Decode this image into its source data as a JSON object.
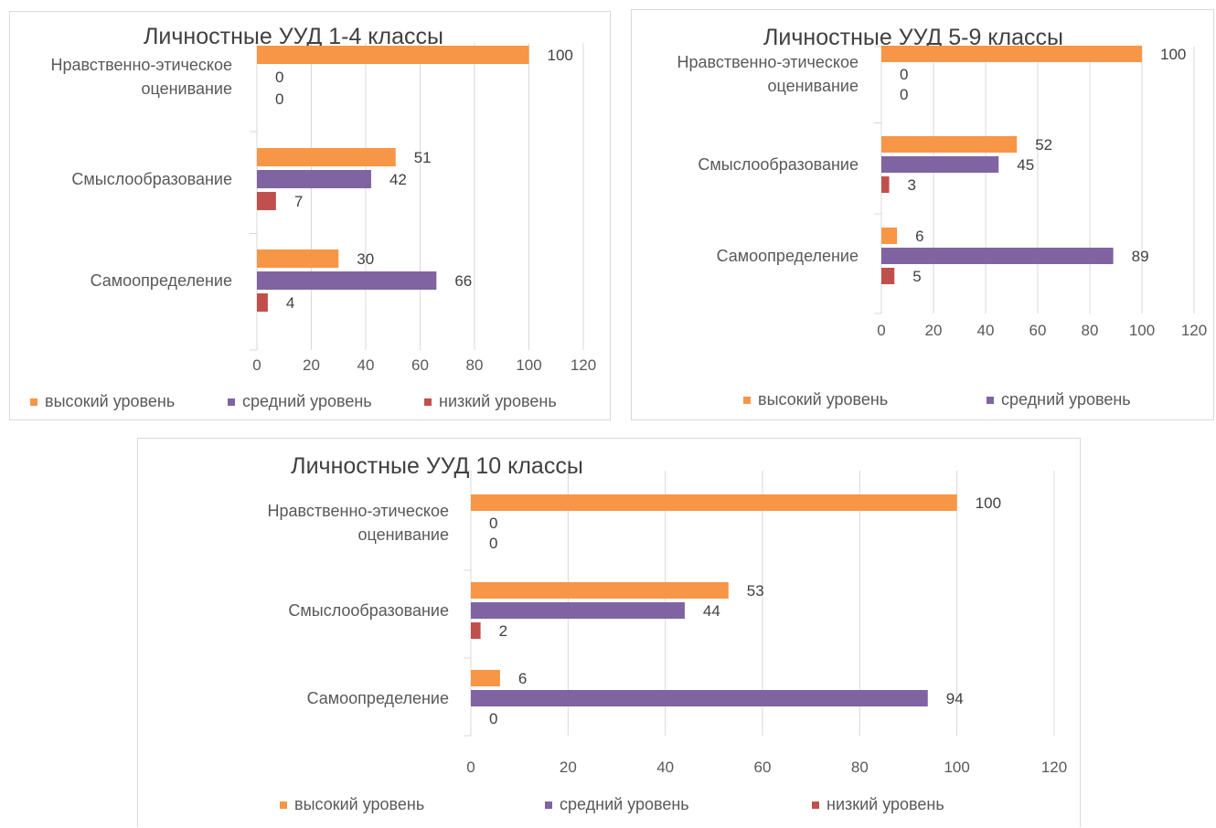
{
  "colors": {
    "high": "#f79646",
    "mid": "#8064a2",
    "low": "#c0504d",
    "grid": "#d9d9d9"
  },
  "chart_data": [
    {
      "type": "bar",
      "title": "Личностные УУД 1-4 классы",
      "categories": [
        "Нравственно-этическое оценивание",
        "Смыслообразование",
        "Самоопределение"
      ],
      "category_lines": [
        [
          "Нравственно-этическое",
          "оценивание"
        ],
        [
          "Смыслообразование"
        ],
        [
          "Самоопределение"
        ]
      ],
      "series": [
        {
          "name": "высокий уровень",
          "values": [
            100,
            51,
            30
          ]
        },
        {
          "name": "средний уровень",
          "values": [
            0,
            42,
            66
          ]
        },
        {
          "name": "низкий уровень",
          "values": [
            0,
            7,
            4
          ]
        }
      ],
      "xlim": [
        0,
        120
      ],
      "xticks": [
        "0",
        "20",
        "40",
        "60",
        "80",
        "100",
        "120"
      ],
      "grid": true,
      "legend": "bottom"
    },
    {
      "type": "bar",
      "title": "Личностные УУД 5-9 классы",
      "categories": [
        "Нравственно-этическое оценивание",
        "Смыслообразование",
        "Самоопределение"
      ],
      "category_lines": [
        [
          "Нравственно-этическое",
          "оценивание"
        ],
        [
          "Смыслообразование"
        ],
        [
          "Самоопределение"
        ]
      ],
      "series": [
        {
          "name": "высокий уровень",
          "values": [
            100,
            52,
            6
          ]
        },
        {
          "name": "средний уровень",
          "values": [
            0,
            45,
            89
          ]
        },
        {
          "name": "",
          "values": [
            0,
            3,
            5
          ]
        }
      ],
      "xlim": [
        0,
        120
      ],
      "xticks": [
        "0",
        "20",
        "40",
        "60",
        "80",
        "100",
        "120"
      ],
      "grid": true,
      "legend": "bottom"
    },
    {
      "type": "bar",
      "title": "Личностные УУД 10 классы",
      "categories": [
        "Нравственно-этическое оценивание",
        "Смыслообразование",
        "Самоопределение"
      ],
      "category_lines": [
        [
          "Нравственно-этическое",
          "оценивание"
        ],
        [
          "Смыслообразование"
        ],
        [
          "Самоопределение"
        ]
      ],
      "series": [
        {
          "name": "высокий уровень",
          "values": [
            100,
            53,
            6
          ]
        },
        {
          "name": "средний уровень",
          "values": [
            0,
            44,
            94
          ]
        },
        {
          "name": "низкий уровень",
          "values": [
            0,
            2,
            0
          ]
        }
      ],
      "xlim": [
        0,
        120
      ],
      "xticks": [
        "0",
        "20",
        "40",
        "60",
        "80",
        "100",
        "120"
      ],
      "grid": true,
      "legend": "bottom"
    }
  ]
}
